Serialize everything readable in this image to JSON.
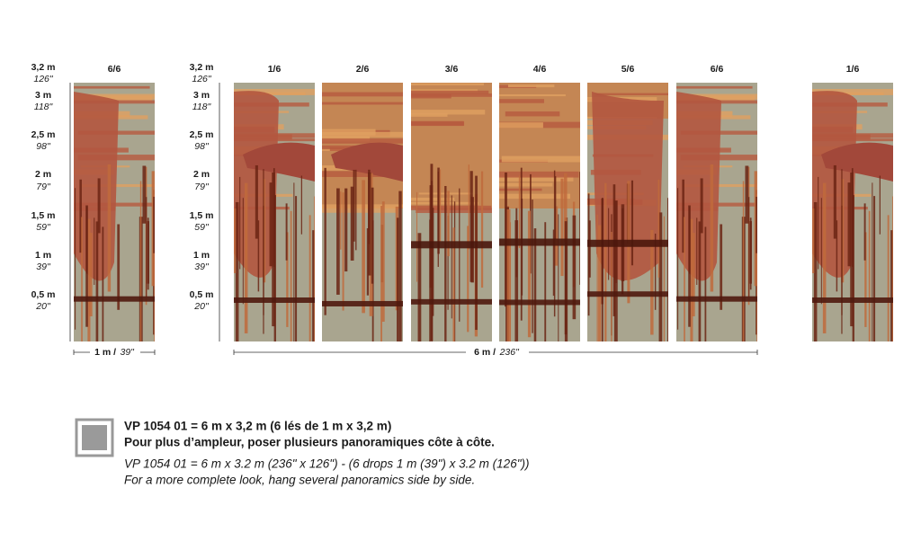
{
  "scale": [
    {
      "metric": "3,2 m",
      "imperial": "126\""
    },
    {
      "metric": "3 m",
      "imperial": "118\""
    },
    {
      "metric": "2,5 m",
      "imperial": "98\""
    },
    {
      "metric": "2 m",
      "imperial": "79\""
    },
    {
      "metric": "1,5 m",
      "imperial": "59\""
    },
    {
      "metric": "1 m",
      "imperial": "39\""
    },
    {
      "metric": "0,5 m",
      "imperial": "20\""
    }
  ],
  "single_panel": {
    "label": "6/6",
    "width_metric": "1 m /",
    "width_imperial": "39\""
  },
  "panorama": {
    "labels": [
      "1/6",
      "2/6",
      "3/6",
      "4/6",
      "5/6",
      "6/6"
    ],
    "width_metric": "6 m /",
    "width_imperial": "236\""
  },
  "repeat_panel": {
    "label": "1/6"
  },
  "description": {
    "line_fr_1": "VP 1054 01 = 6 m x 3,2 m (6 lés de 1 m x 3,2 m)",
    "line_fr_2": "Pour plus d’ampleur, poser plusieurs panoramiques côte à côte.",
    "line_en_1": "VP 1054 01 = 6 m x 3.2 m (236\" x 126\") - (6 drops 1 m (39\") x 3.2 m (126\"))",
    "line_en_2": "For a more complete look, hang several panoramics side by side."
  }
}
